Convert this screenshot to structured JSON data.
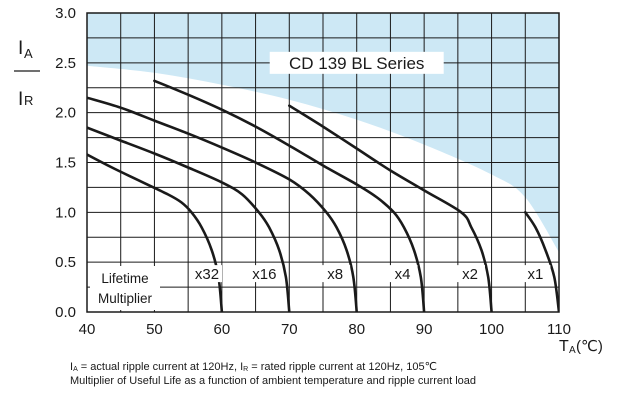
{
  "chart_data": {
    "type": "line",
    "title": "CD 139 BL Series",
    "ylabel_top": "IA",
    "ylabel_bottom": "IR",
    "xlabel": "TA(℃)",
    "x_ticks": [
      "40",
      "50",
      "60",
      "70",
      "80",
      "90",
      "100",
      "110"
    ],
    "y_ticks": [
      "0.0",
      "0.5",
      "1.0",
      "1.5",
      "2.0",
      "2.5",
      "3.0"
    ],
    "xlim": [
      40,
      110
    ],
    "ylim": [
      0.0,
      3.0
    ],
    "grid": true,
    "lifetime_label_1": "Lifetime",
    "lifetime_label_2": "Multiplier",
    "shaded_region_color": "#cde8f5",
    "line_color": "#1a1a1a",
    "series": [
      {
        "name": "x32",
        "label_x": 57.8,
        "points": [
          [
            40,
            1.58
          ],
          [
            44,
            1.44
          ],
          [
            48,
            1.31
          ],
          [
            52,
            1.18
          ],
          [
            54,
            1.1
          ],
          [
            55.5,
            1.0
          ],
          [
            57,
            0.85
          ],
          [
            58.5,
            0.62
          ],
          [
            59.5,
            0.35
          ],
          [
            60,
            0.0
          ]
        ]
      },
      {
        "name": "x16",
        "label_x": 66.3,
        "points": [
          [
            40,
            1.85
          ],
          [
            45,
            1.72
          ],
          [
            50,
            1.59
          ],
          [
            55,
            1.45
          ],
          [
            60,
            1.3
          ],
          [
            63,
            1.18
          ],
          [
            65.5,
            1.0
          ],
          [
            67,
            0.85
          ],
          [
            68.5,
            0.62
          ],
          [
            69.5,
            0.35
          ],
          [
            70,
            0.0
          ]
        ]
      },
      {
        "name": "x8",
        "label_x": 76.8,
        "points": [
          [
            40,
            2.15
          ],
          [
            45,
            2.05
          ],
          [
            50,
            1.92
          ],
          [
            55,
            1.79
          ],
          [
            60,
            1.65
          ],
          [
            65,
            1.5
          ],
          [
            70,
            1.33
          ],
          [
            73,
            1.18
          ],
          [
            75.5,
            1.0
          ],
          [
            77,
            0.85
          ],
          [
            78.5,
            0.62
          ],
          [
            79.5,
            0.35
          ],
          [
            80,
            0.0
          ]
        ]
      },
      {
        "name": "x4",
        "label_x": 86.8,
        "points": [
          [
            50,
            2.32
          ],
          [
            55,
            2.18
          ],
          [
            60,
            2.03
          ],
          [
            65,
            1.86
          ],
          [
            70,
            1.67
          ],
          [
            75,
            1.47
          ],
          [
            80,
            1.28
          ],
          [
            83,
            1.15
          ],
          [
            85.5,
            1.0
          ],
          [
            87,
            0.85
          ],
          [
            88.5,
            0.62
          ],
          [
            89.5,
            0.35
          ],
          [
            90,
            0.0
          ]
        ]
      },
      {
        "name": "x2",
        "label_x": 96.8,
        "points": [
          [
            70,
            2.07
          ],
          [
            75,
            1.86
          ],
          [
            80,
            1.64
          ],
          [
            85,
            1.42
          ],
          [
            90,
            1.22
          ],
          [
            95.5,
            1.0
          ],
          [
            97,
            0.85
          ],
          [
            98.5,
            0.62
          ],
          [
            99.5,
            0.35
          ],
          [
            100,
            0.0
          ]
        ]
      },
      {
        "name": "x1",
        "label_x": 106.5,
        "points": [
          [
            105,
            1.0
          ],
          [
            106.5,
            0.85
          ],
          [
            108,
            0.62
          ],
          [
            109.3,
            0.35
          ],
          [
            110,
            0.0
          ]
        ]
      }
    ],
    "envelope": [
      [
        40,
        2.47
      ],
      [
        50,
        2.4
      ],
      [
        60,
        2.28
      ],
      [
        70,
        2.13
      ],
      [
        80,
        1.93
      ],
      [
        90,
        1.68
      ],
      [
        100,
        1.38
      ],
      [
        105,
        1.15
      ],
      [
        110,
        0.6
      ]
    ]
  },
  "caption": {
    "line1_parts": [
      "I",
      "A",
      " = actual ripple current at 120Hz, I",
      "R",
      " = rated ripple current at 120Hz, 105℃"
    ],
    "line2": "Multiplier of Useful Life as a function of ambient temperature and ripple current load"
  }
}
